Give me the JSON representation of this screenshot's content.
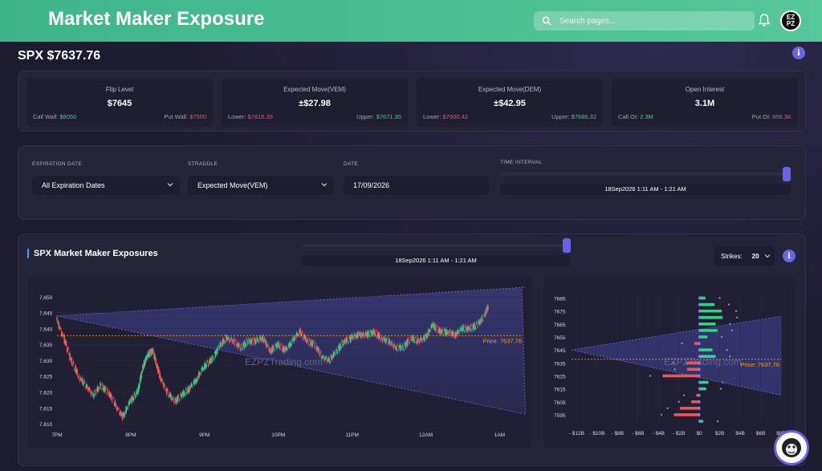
{
  "header": {
    "title": "Market Maker Exposure",
    "search_placeholder": "Search pages...",
    "avatar_text": "EZ PZ"
  },
  "page": {
    "title": "SPX $7637.76"
  },
  "stats": [
    {
      "label": "Flip Level",
      "value": "$7645",
      "left_label": "Call Wall: ",
      "left_value": "$8050",
      "right_label": "Put Wall: ",
      "right_value": "$7500"
    },
    {
      "label": "Expected Move(VEM)",
      "value": "±$27.98",
      "left_label": "Lower: ",
      "left_value": "$7615.39",
      "right_label": "Upper: ",
      "right_value": "$7671.35"
    },
    {
      "label": "Expected Move(DEM)",
      "value": "±$42.95",
      "left_label": "Lower: ",
      "left_value": "$7600.42",
      "right_label": "Upper: ",
      "right_value": "$7686.32"
    },
    {
      "label": "Open Interest",
      "value": "3.1M",
      "left_label": "Call OI: ",
      "left_value": "2.3M",
      "right_label": "Put OI: ",
      "right_value": "856.3K"
    }
  ],
  "filters": {
    "expiration_label": "EXPIRATION DATE",
    "expiration_value": "All Expiration Dates",
    "straddle_label": "STRADDLE",
    "straddle_value": "Expected Move(VEM)",
    "date_label": "DATE",
    "date_value": "17/09/2026",
    "interval_label": "TIME INTERVAL",
    "interval_value": "18Sep2026 1:11 AM - 1:21 AM",
    "interval_position": 1.0
  },
  "exposures": {
    "title": "SPX Market Maker Exposures",
    "interval_value": "18Sep2026 1:11 AM - 1:21 AM",
    "strikes_label": "Strikes:",
    "strikes_value": "20",
    "watermark": "EZPZTrading.com",
    "price_label": "Price: 7637.76"
  },
  "colors": {
    "accent": "#6b63e6",
    "green": "#35d18b",
    "red": "#f0545a",
    "header_green": "#45bb8f",
    "price_line": "#f0a020"
  },
  "chart_data": [
    {
      "type": "line",
      "title": "",
      "x_tick_labels": [
        "7PM",
        "8PM",
        "9PM",
        "10PM",
        "11PM",
        "12AM",
        "1AM"
      ],
      "y_tick_labels": [
        "7,650",
        "7,645",
        "7,640",
        "7,635",
        "7,630",
        "7,625",
        "7,620",
        "7,615",
        "7,610"
      ],
      "ylim": [
        7609,
        7652
      ],
      "price": 7637.76,
      "price_series": [
        [
          0,
          7643
        ],
        [
          0.1,
          7637
        ],
        [
          0.2,
          7630
        ],
        [
          0.3,
          7625
        ],
        [
          0.4,
          7622
        ],
        [
          0.5,
          7619
        ],
        [
          0.6,
          7622
        ],
        [
          0.7,
          7620
        ],
        [
          0.8,
          7616
        ],
        [
          0.9,
          7612
        ],
        [
          1.0,
          7617
        ],
        [
          1.1,
          7620
        ],
        [
          1.15,
          7626
        ],
        [
          1.2,
          7630
        ],
        [
          1.25,
          7632
        ],
        [
          1.3,
          7633
        ],
        [
          1.35,
          7629
        ],
        [
          1.4,
          7625
        ],
        [
          1.5,
          7620
        ],
        [
          1.6,
          7617
        ],
        [
          1.7,
          7619
        ],
        [
          1.8,
          7621
        ],
        [
          1.9,
          7624
        ],
        [
          2.0,
          7628
        ],
        [
          2.1,
          7630
        ],
        [
          2.2,
          7634
        ],
        [
          2.3,
          7637
        ],
        [
          2.4,
          7636
        ],
        [
          2.5,
          7634
        ],
        [
          2.6,
          7636
        ],
        [
          2.7,
          7636
        ],
        [
          2.8,
          7637
        ],
        [
          2.9,
          7633
        ],
        [
          3.0,
          7635
        ],
        [
          3.1,
          7633
        ],
        [
          3.2,
          7636
        ],
        [
          3.3,
          7639
        ],
        [
          3.4,
          7636
        ],
        [
          3.5,
          7635
        ],
        [
          3.6,
          7631
        ],
        [
          3.7,
          7630
        ],
        [
          3.8,
          7633
        ],
        [
          3.9,
          7636
        ],
        [
          4.0,
          7637
        ],
        [
          4.1,
          7638
        ],
        [
          4.2,
          7638
        ],
        [
          4.3,
          7639
        ],
        [
          4.4,
          7637
        ],
        [
          4.5,
          7636
        ],
        [
          4.6,
          7634
        ],
        [
          4.7,
          7634
        ],
        [
          4.8,
          7637
        ],
        [
          4.9,
          7636
        ],
        [
          5.0,
          7637
        ],
        [
          5.1,
          7641
        ],
        [
          5.2,
          7639
        ],
        [
          5.3,
          7639
        ],
        [
          5.4,
          7638
        ],
        [
          5.5,
          7640
        ],
        [
          5.6,
          7640
        ],
        [
          5.7,
          7641
        ],
        [
          5.8,
          7644
        ],
        [
          5.85,
          7647
        ]
      ],
      "expected_move_cone": {
        "start": [
          0,
          7644
        ],
        "upper_end": [
          6.35,
          7653
        ],
        "lower_end": [
          6.35,
          7613
        ]
      }
    },
    {
      "type": "bar",
      "title": "",
      "orientation": "horizontal",
      "x_tick_labels": [
        "- $12B",
        "- $10B",
        "- $8B",
        "- $6B",
        "- $4B",
        "- $2B",
        "$0",
        "$2B",
        "$4B",
        "$6B",
        "$8B"
      ],
      "y_tick_labels": [
        "7685",
        "7675",
        "7665",
        "7655",
        "7645",
        "7635",
        "7625",
        "7615",
        "7605",
        "7595"
      ],
      "xlim": [
        -12.5,
        8
      ],
      "ylim": [
        7590,
        7689
      ],
      "strikes": [
        7685,
        7680,
        7675,
        7670,
        7665,
        7660,
        7655,
        7650,
        7645,
        7640,
        7635,
        7630,
        7625,
        7620,
        7615,
        7610,
        7605,
        7600,
        7595,
        7590
      ],
      "values": [
        0.6,
        1.5,
        2.2,
        2.3,
        1.6,
        1.8,
        0.8,
        -0.5,
        1.3,
        1.6,
        -1.3,
        -1.2,
        -3.6,
        0.9,
        0.7,
        -0.3,
        -0.8,
        -1.9,
        -2.5,
        0.4
      ]
    }
  ]
}
